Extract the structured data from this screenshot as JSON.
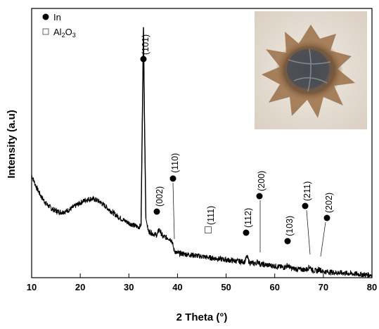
{
  "chart_data": {
    "type": "line",
    "title": "",
    "xlabel": "2 Theta (°)",
    "ylabel": "Intensity (a.u)",
    "xlim": [
      10,
      80
    ],
    "ylim": [
      0,
      100
    ],
    "x_ticks": [
      10,
      20,
      30,
      40,
      50,
      60,
      70,
      80
    ],
    "y_ticks": [],
    "grid": false,
    "legend": {
      "placement": "top-left",
      "entries": [
        {
          "marker": "filled-circle",
          "label": "In"
        },
        {
          "marker": "open-square",
          "label_main": "Al",
          "sub1": "2",
          "label_mid": "O",
          "sub2": "3"
        }
      ]
    },
    "series": [
      {
        "color": "#000000",
        "x": [
          10,
          11,
          12,
          13,
          14,
          15,
          16,
          17,
          18,
          19,
          20,
          21,
          22,
          23,
          24,
          25,
          26,
          27,
          28,
          29,
          30,
          31,
          32,
          32.5,
          33.0,
          33.2,
          33.5,
          34,
          35,
          35.8,
          36.2,
          37,
          38,
          38.8,
          39.3,
          39.8,
          41,
          43,
          45,
          47,
          49,
          51,
          53,
          53.8,
          54.3,
          54.8,
          56,
          56.6,
          57,
          58,
          60,
          62,
          62.7,
          63.3,
          65,
          66.5,
          67.2,
          67.8,
          68.8,
          69.2,
          69.8,
          72,
          75,
          78,
          80
        ],
        "y": [
          38,
          33.5,
          30,
          27.5,
          25.8,
          24.8,
          24.3,
          24.6,
          25.5,
          26.7,
          27.8,
          28.8,
          29.3,
          29.1,
          28.2,
          26.8,
          25.2,
          23.7,
          22.4,
          21.3,
          20.3,
          19.5,
          18.8,
          19.4,
          93,
          60,
          22,
          17.3,
          16.3,
          15.8,
          18.0,
          15.2,
          14.8,
          14.0,
          10.2,
          9.2,
          8.9,
          8.4,
          7.9,
          7.3,
          6.9,
          6.4,
          6.0,
          5.9,
          7.9,
          5.6,
          5.2,
          6.1,
          5.0,
          4.8,
          4.3,
          3.8,
          4.7,
          3.5,
          3.1,
          3.0,
          4.1,
          2.7,
          2.5,
          3.3,
          2.3,
          2.0,
          1.6,
          1.2,
          1.0
        ]
      }
    ],
    "annotations": [
      {
        "label": "(101)",
        "phase": "In",
        "x": 33.0
      },
      {
        "label": "(002)",
        "phase": "In",
        "x": 36.2
      },
      {
        "label": "(110)",
        "phase": "In",
        "x": 39.3
      },
      {
        "label": "(111)",
        "phase": "Al2O3",
        "x": 45.8
      },
      {
        "label": "(112)",
        "phase": "In",
        "x": 54.3
      },
      {
        "label": "(200)",
        "phase": "In",
        "x": 56.6
      },
      {
        "label": "(103)",
        "phase": "In",
        "x": 62.7
      },
      {
        "label": "(211)",
        "phase": "In",
        "x": 67.2
      },
      {
        "label": "(202)",
        "phase": "In",
        "x": 69.2
      }
    ],
    "inset": {
      "description_color": "#6b5a4d"
    }
  }
}
